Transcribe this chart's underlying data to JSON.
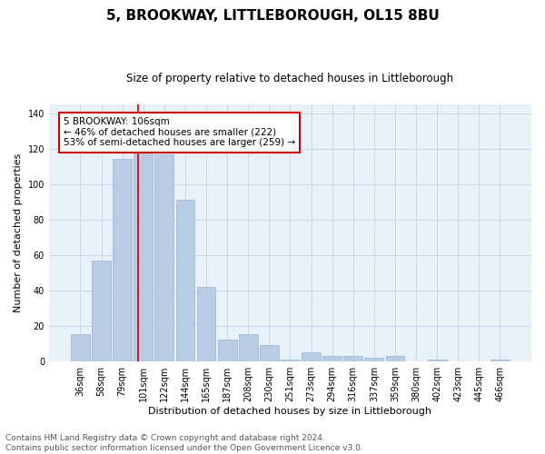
{
  "title": "5, BROOKWAY, LITTLEBOROUGH, OL15 8BU",
  "subtitle": "Size of property relative to detached houses in Littleborough",
  "xlabel": "Distribution of detached houses by size in Littleborough",
  "ylabel": "Number of detached properties",
  "categories": [
    "36sqm",
    "58sqm",
    "79sqm",
    "101sqm",
    "122sqm",
    "144sqm",
    "165sqm",
    "187sqm",
    "208sqm",
    "230sqm",
    "251sqm",
    "273sqm",
    "294sqm",
    "316sqm",
    "337sqm",
    "359sqm",
    "380sqm",
    "402sqm",
    "423sqm",
    "445sqm",
    "466sqm"
  ],
  "values": [
    15,
    57,
    114,
    118,
    117,
    91,
    42,
    12,
    15,
    9,
    1,
    5,
    3,
    3,
    2,
    3,
    0,
    1,
    0,
    0,
    1
  ],
  "bar_color": "#b8cce4",
  "bar_edge_color": "#9ab4d0",
  "grid_color": "#c8d8ea",
  "background_color": "#e8f0f8",
  "vline_color": "#cc0000",
  "vline_x": 2.73,
  "annotation_text": "5 BROOKWAY: 106sqm\n← 46% of detached houses are smaller (222)\n53% of semi-detached houses are larger (259) →",
  "annotation_box_color": "#ffffff",
  "annotation_box_edge": "#cc0000",
  "ylim": [
    0,
    145
  ],
  "yticks": [
    0,
    20,
    40,
    60,
    80,
    100,
    120,
    140
  ],
  "footer": "Contains HM Land Registry data © Crown copyright and database right 2024.\nContains public sector information licensed under the Open Government Licence v3.0.",
  "title_fontsize": 11,
  "subtitle_fontsize": 8.5,
  "annotation_fontsize": 7.5,
  "footer_fontsize": 6.5,
  "ylabel_fontsize": 8,
  "xlabel_fontsize": 8,
  "tick_fontsize": 7
}
